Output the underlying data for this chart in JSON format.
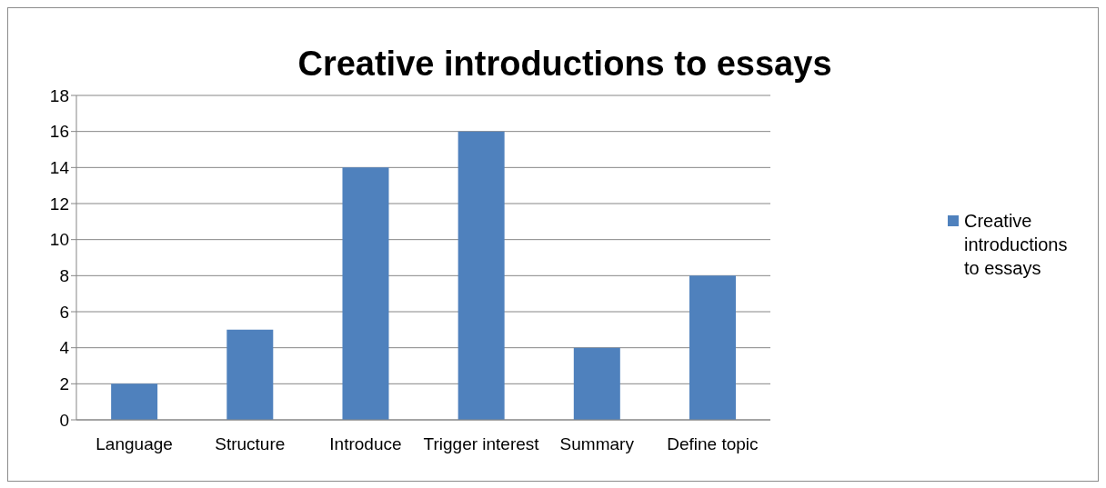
{
  "chart_data": {
    "type": "bar",
    "title": "Creative introductions to essays",
    "categories": [
      "Language",
      "Structure",
      "Introduce",
      "Trigger interest",
      "Summary",
      "Define topic"
    ],
    "series": [
      {
        "name": "Creative introductions to essays",
        "color": "#4f81bd",
        "values": [
          2,
          5,
          14,
          16,
          4,
          8
        ]
      }
    ],
    "ylim": [
      0,
      18
    ],
    "yticks": [
      0,
      2,
      4,
      6,
      8,
      10,
      12,
      14,
      16,
      18
    ],
    "grid": "y",
    "legend": "right"
  }
}
